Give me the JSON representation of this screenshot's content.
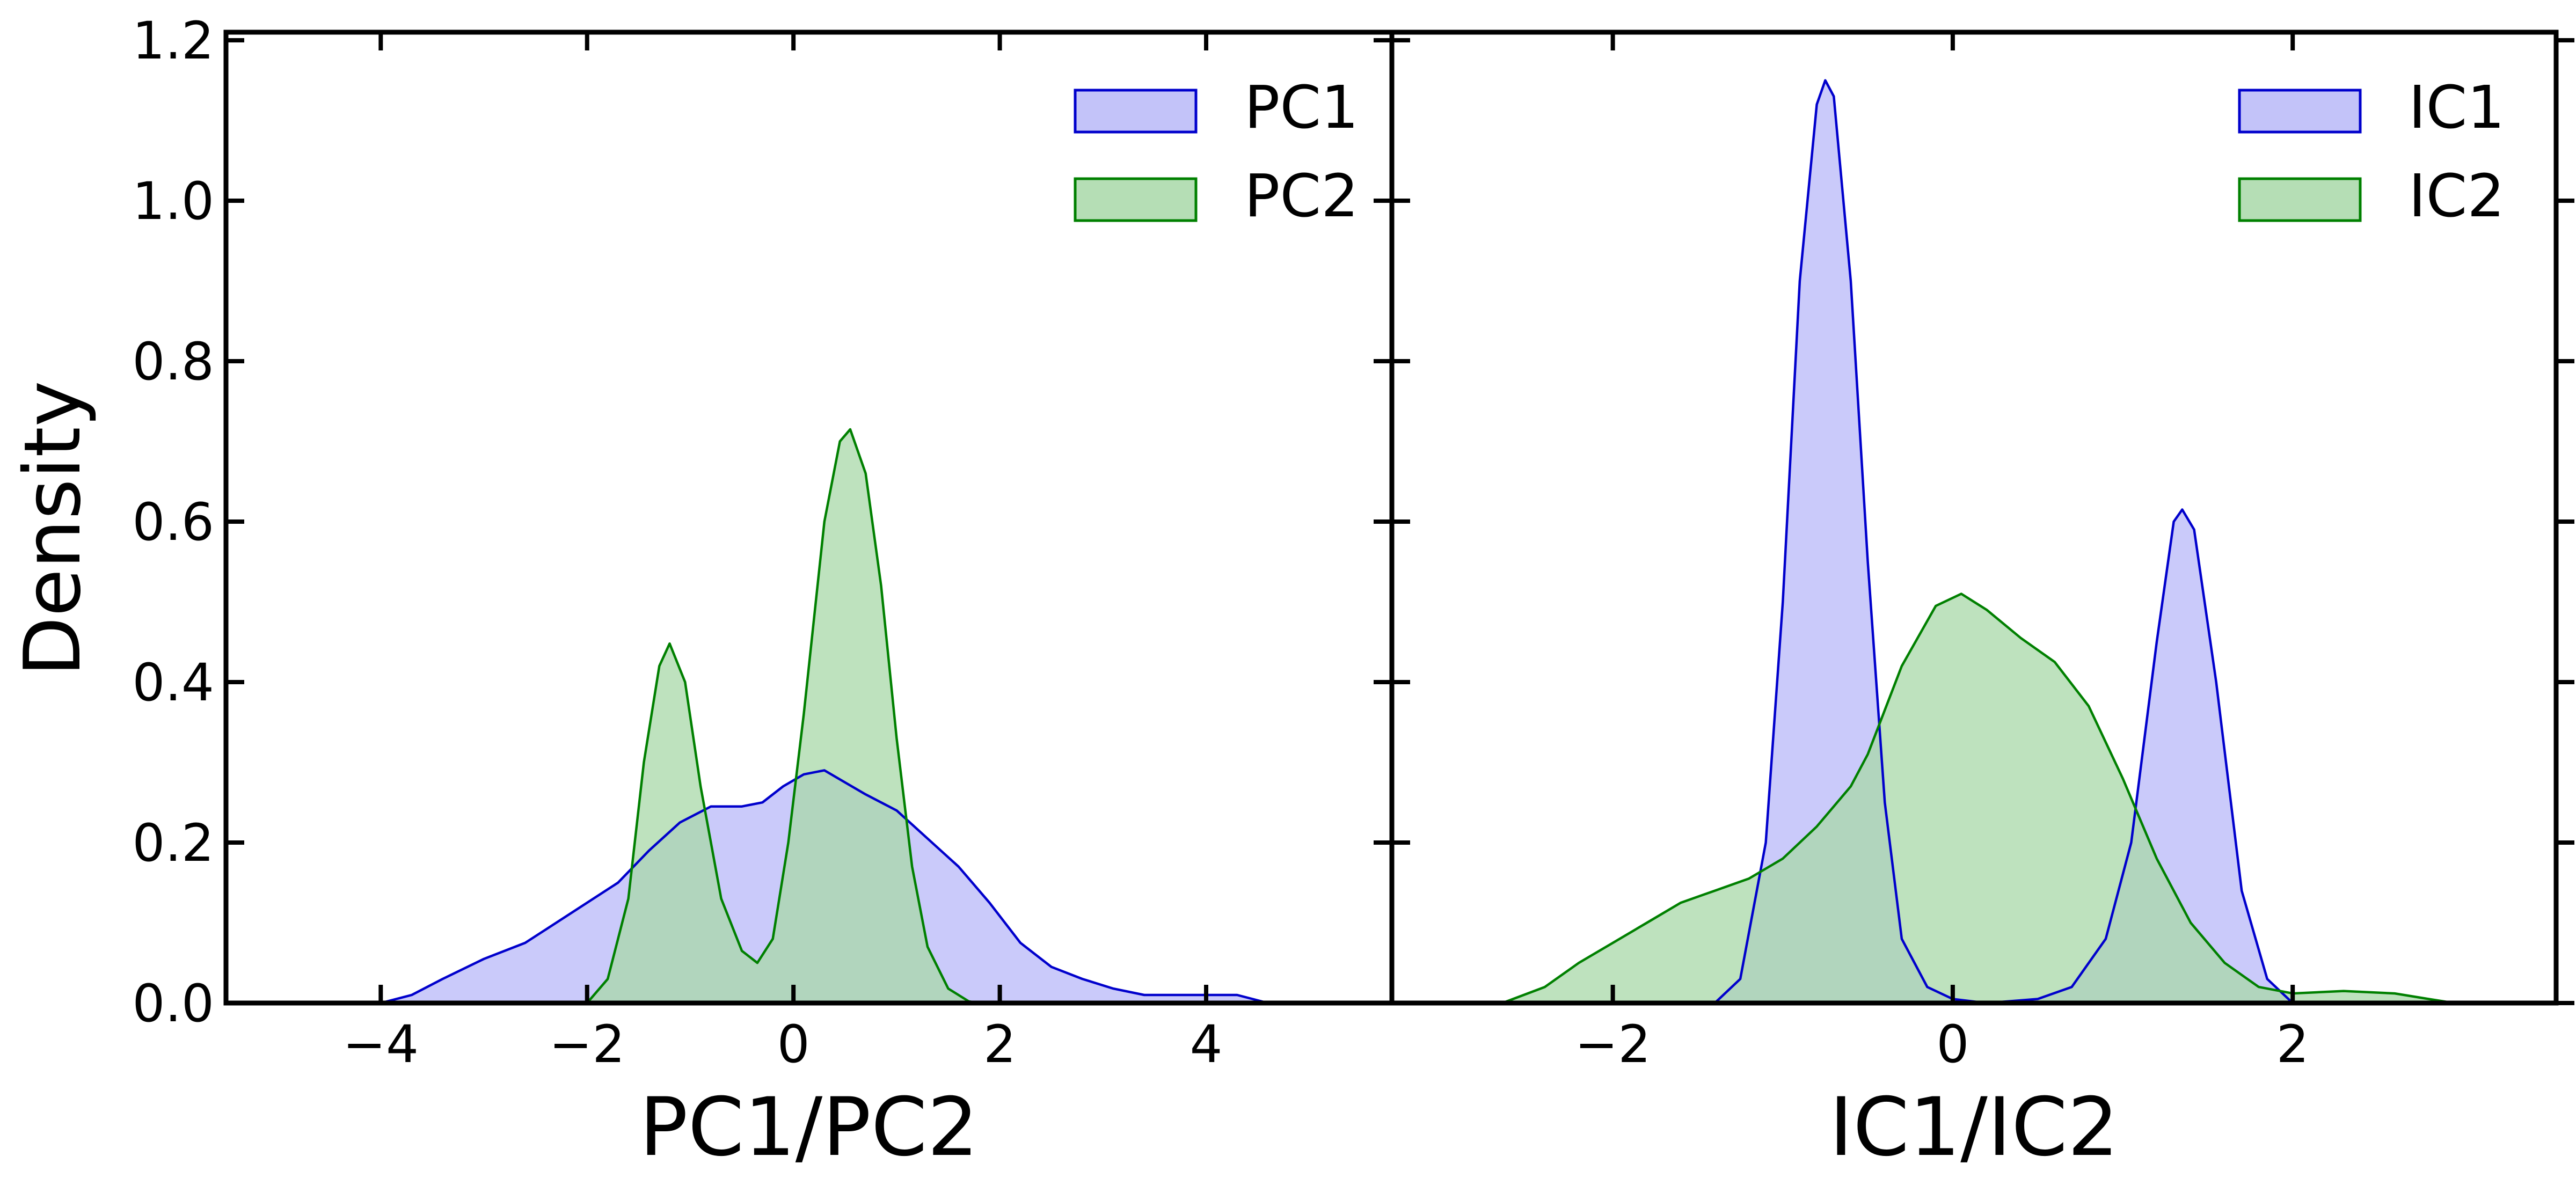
{
  "ylabel": "Density",
  "chart_data": [
    {
      "type": "area",
      "title": "",
      "xlabel": "PC1/PC2",
      "ylabel": "Density",
      "xlim": [
        -5.5,
        5.8
      ],
      "ylim": [
        0,
        1.21
      ],
      "xticks": [
        -4,
        -2,
        0,
        2,
        4
      ],
      "xtick_labels": [
        "−4",
        "−2",
        "0",
        "2",
        "4"
      ],
      "yticks": [
        0.0,
        0.2,
        0.4,
        0.6,
        0.8,
        1.0,
        1.2
      ],
      "ytick_labels": [
        "0.0",
        "0.2",
        "0.4",
        "0.6",
        "0.8",
        "1.0",
        "1.2"
      ],
      "grid": false,
      "legend_position": "top-right",
      "series": [
        {
          "name": "PC1",
          "color": "#0000cc",
          "fill": "#b8b8f8",
          "points": [
            [
              -4.0,
              0.0
            ],
            [
              -3.7,
              0.01
            ],
            [
              -3.4,
              0.03
            ],
            [
              -3.0,
              0.055
            ],
            [
              -2.6,
              0.075
            ],
            [
              -2.3,
              0.1
            ],
            [
              -2.0,
              0.125
            ],
            [
              -1.7,
              0.15
            ],
            [
              -1.4,
              0.19
            ],
            [
              -1.1,
              0.225
            ],
            [
              -0.8,
              0.245
            ],
            [
              -0.5,
              0.245
            ],
            [
              -0.3,
              0.25
            ],
            [
              -0.1,
              0.27
            ],
            [
              0.1,
              0.285
            ],
            [
              0.3,
              0.29
            ],
            [
              0.5,
              0.275
            ],
            [
              0.7,
              0.26
            ],
            [
              1.0,
              0.24
            ],
            [
              1.3,
              0.205
            ],
            [
              1.6,
              0.17
            ],
            [
              1.9,
              0.125
            ],
            [
              2.2,
              0.075
            ],
            [
              2.5,
              0.045
            ],
            [
              2.8,
              0.03
            ],
            [
              3.1,
              0.018
            ],
            [
              3.4,
              0.01
            ],
            [
              3.7,
              0.01
            ],
            [
              4.0,
              0.01
            ],
            [
              4.3,
              0.01
            ],
            [
              4.6,
              0.0
            ]
          ]
        },
        {
          "name": "PC2",
          "color": "#008000",
          "fill": "#a8d8a8",
          "points": [
            [
              -2.0,
              0.0
            ],
            [
              -1.8,
              0.03
            ],
            [
              -1.6,
              0.13
            ],
            [
              -1.45,
              0.3
            ],
            [
              -1.3,
              0.42
            ],
            [
              -1.2,
              0.448
            ],
            [
              -1.05,
              0.4
            ],
            [
              -0.9,
              0.27
            ],
            [
              -0.7,
              0.13
            ],
            [
              -0.5,
              0.065
            ],
            [
              -0.35,
              0.05
            ],
            [
              -0.2,
              0.08
            ],
            [
              -0.05,
              0.2
            ],
            [
              0.1,
              0.36
            ],
            [
              0.3,
              0.6
            ],
            [
              0.45,
              0.7
            ],
            [
              0.55,
              0.715
            ],
            [
              0.7,
              0.66
            ],
            [
              0.85,
              0.52
            ],
            [
              1.0,
              0.33
            ],
            [
              1.15,
              0.17
            ],
            [
              1.3,
              0.07
            ],
            [
              1.5,
              0.018
            ],
            [
              1.7,
              0.002
            ],
            [
              1.8,
              0.0
            ]
          ]
        }
      ]
    },
    {
      "type": "area",
      "title": "",
      "xlabel": "IC1/IC2",
      "ylabel": "",
      "xlim": [
        -3.3,
        3.55
      ],
      "ylim": [
        0,
        1.21
      ],
      "xticks": [
        -2,
        0,
        2
      ],
      "xtick_labels": [
        "−2",
        "0",
        "2"
      ],
      "yticks": [
        0.0,
        0.2,
        0.4,
        0.6,
        0.8,
        1.0,
        1.2
      ],
      "grid": false,
      "legend_position": "top-right",
      "series": [
        {
          "name": "IC1",
          "color": "#0000cc",
          "fill": "#b8b8f8",
          "points": [
            [
              -1.4,
              0.0
            ],
            [
              -1.25,
              0.03
            ],
            [
              -1.1,
              0.2
            ],
            [
              -1.0,
              0.5
            ],
            [
              -0.9,
              0.9
            ],
            [
              -0.8,
              1.12
            ],
            [
              -0.75,
              1.15
            ],
            [
              -0.7,
              1.13
            ],
            [
              -0.6,
              0.9
            ],
            [
              -0.5,
              0.55
            ],
            [
              -0.4,
              0.25
            ],
            [
              -0.3,
              0.08
            ],
            [
              -0.15,
              0.02
            ],
            [
              0.0,
              0.005
            ],
            [
              0.2,
              0.0
            ],
            [
              0.5,
              0.005
            ],
            [
              0.7,
              0.02
            ],
            [
              0.9,
              0.08
            ],
            [
              1.05,
              0.2
            ],
            [
              1.2,
              0.45
            ],
            [
              1.3,
              0.6
            ],
            [
              1.35,
              0.615
            ],
            [
              1.42,
              0.59
            ],
            [
              1.55,
              0.4
            ],
            [
              1.7,
              0.14
            ],
            [
              1.85,
              0.03
            ],
            [
              2.0,
              0.0
            ]
          ]
        },
        {
          "name": "IC2",
          "color": "#008000",
          "fill": "#a8d8a8",
          "points": [
            [
              -2.65,
              0.0
            ],
            [
              -2.4,
              0.02
            ],
            [
              -2.2,
              0.05
            ],
            [
              -2.0,
              0.075
            ],
            [
              -1.8,
              0.1
            ],
            [
              -1.6,
              0.125
            ],
            [
              -1.4,
              0.14
            ],
            [
              -1.2,
              0.155
            ],
            [
              -1.0,
              0.18
            ],
            [
              -0.8,
              0.22
            ],
            [
              -0.6,
              0.27
            ],
            [
              -0.5,
              0.31
            ],
            [
              -0.3,
              0.42
            ],
            [
              -0.1,
              0.495
            ],
            [
              0.05,
              0.51
            ],
            [
              0.2,
              0.49
            ],
            [
              0.4,
              0.455
            ],
            [
              0.6,
              0.425
            ],
            [
              0.8,
              0.37
            ],
            [
              1.0,
              0.28
            ],
            [
              1.2,
              0.18
            ],
            [
              1.4,
              0.1
            ],
            [
              1.6,
              0.05
            ],
            [
              1.8,
              0.02
            ],
            [
              2.0,
              0.012
            ],
            [
              2.3,
              0.015
            ],
            [
              2.6,
              0.012
            ],
            [
              2.8,
              0.005
            ],
            [
              2.95,
              0.0
            ]
          ]
        }
      ]
    }
  ]
}
